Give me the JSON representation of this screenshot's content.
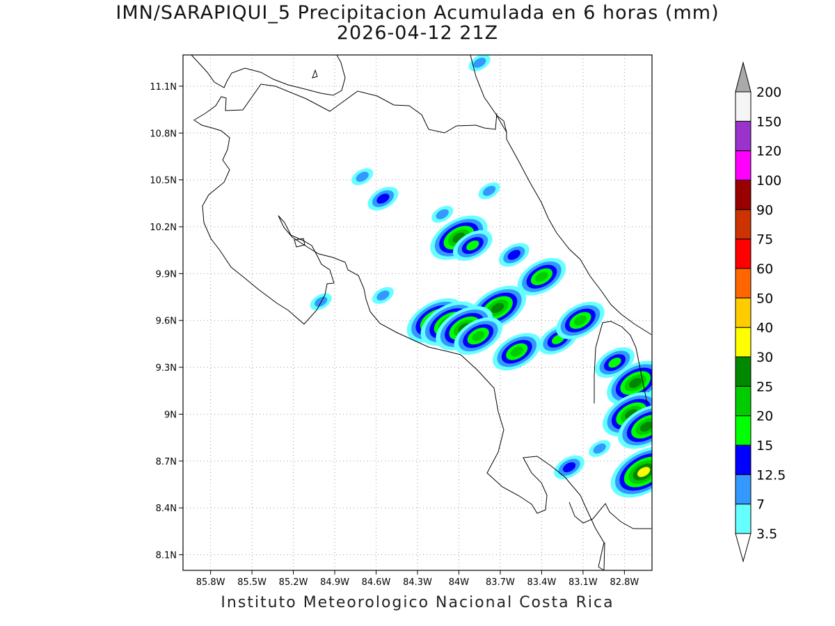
{
  "title": {
    "line1": "IMN/SARAPIQUI_5 Precipitacion Acumulada en 6 horas (mm)",
    "line2": "2026-04-12 21Z"
  },
  "credit": "Instituto Meteorologico Nacional Costa Rica",
  "map": {
    "lon_range": [
      -86.0,
      -82.6
    ],
    "lat_range": [
      8.0,
      11.3
    ],
    "lat_ticks": [
      {
        "value": 11.1,
        "label": "11.1N"
      },
      {
        "value": 10.8,
        "label": "10.8N"
      },
      {
        "value": 10.5,
        "label": "10.5N"
      },
      {
        "value": 10.2,
        "label": "10.2N"
      },
      {
        "value": 9.9,
        "label": "9.9N"
      },
      {
        "value": 9.6,
        "label": "9.6N"
      },
      {
        "value": 9.3,
        "label": "9.3N"
      },
      {
        "value": 9.0,
        "label": "9N"
      },
      {
        "value": 8.7,
        "label": "8.7N"
      },
      {
        "value": 8.4,
        "label": "8.4N"
      },
      {
        "value": 8.1,
        "label": "8.1N"
      }
    ],
    "lon_ticks": [
      {
        "value": -85.8,
        "label": "85.8W"
      },
      {
        "value": -85.5,
        "label": "85.5W"
      },
      {
        "value": -85.2,
        "label": "85.2W"
      },
      {
        "value": -84.9,
        "label": "84.9W"
      },
      {
        "value": -84.6,
        "label": "84.6W"
      },
      {
        "value": -84.3,
        "label": "84.3W"
      },
      {
        "value": -84.0,
        "label": "84W"
      },
      {
        "value": -83.7,
        "label": "83.7W"
      },
      {
        "value": -83.4,
        "label": "83.4W"
      },
      {
        "value": -83.1,
        "label": "83.1W"
      },
      {
        "value": -82.8,
        "label": "82.8W"
      }
    ]
  },
  "colorbar": {
    "levels": [
      {
        "label": "3.5",
        "color": "#66ffff"
      },
      {
        "label": "7",
        "color": "#3399ff"
      },
      {
        "label": "12.5",
        "color": "#0000ff"
      },
      {
        "label": "15",
        "color": "#00ff00"
      },
      {
        "label": "20",
        "color": "#00cc00"
      },
      {
        "label": "25",
        "color": "#008800"
      },
      {
        "label": "30",
        "color": "#ffff00"
      },
      {
        "label": "40",
        "color": "#ffcc00"
      },
      {
        "label": "50",
        "color": "#ff6600"
      },
      {
        "label": "60",
        "color": "#ff0000"
      },
      {
        "label": "75",
        "color": "#cc3300"
      },
      {
        "label": "90",
        "color": "#990000"
      },
      {
        "label": "100",
        "color": "#ff00ff"
      },
      {
        "label": "120",
        "color": "#9933cc"
      },
      {
        "label": "150",
        "color": "#f5f5f5"
      },
      {
        "label": "200",
        "color": "#aaaaaa"
      }
    ]
  },
  "precip_cells": [
    {
      "lon": -83.78,
      "lat": 10.43,
      "level": 1
    },
    {
      "lon": -84.55,
      "lat": 10.38,
      "level": 2
    },
    {
      "lon": -84.12,
      "lat": 10.28,
      "level": 1
    },
    {
      "lon": -84.0,
      "lat": 10.13,
      "level": 5
    },
    {
      "lon": -83.9,
      "lat": 10.08,
      "level": 3
    },
    {
      "lon": -83.6,
      "lat": 10.02,
      "level": 2
    },
    {
      "lon": -83.4,
      "lat": 9.88,
      "level": 4
    },
    {
      "lon": -83.72,
      "lat": 9.68,
      "level": 5
    },
    {
      "lon": -84.17,
      "lat": 9.6,
      "level": 5
    },
    {
      "lon": -84.07,
      "lat": 9.58,
      "level": 5
    },
    {
      "lon": -83.96,
      "lat": 9.55,
      "level": 5
    },
    {
      "lon": -83.86,
      "lat": 9.5,
      "level": 4
    },
    {
      "lon": -83.58,
      "lat": 9.4,
      "level": 4
    },
    {
      "lon": -83.28,
      "lat": 9.48,
      "level": 3
    },
    {
      "lon": -83.12,
      "lat": 9.6,
      "level": 4
    },
    {
      "lon": -82.87,
      "lat": 9.33,
      "level": 3
    },
    {
      "lon": -82.72,
      "lat": 9.2,
      "level": 5
    },
    {
      "lon": -82.75,
      "lat": 9.0,
      "level": 5
    },
    {
      "lon": -82.64,
      "lat": 8.92,
      "level": 5
    },
    {
      "lon": -82.66,
      "lat": 8.63,
      "level": 6
    },
    {
      "lon": -83.2,
      "lat": 8.66,
      "level": 2
    },
    {
      "lon": -82.98,
      "lat": 8.78,
      "level": 1
    },
    {
      "lon": -84.55,
      "lat": 9.76,
      "level": 1
    },
    {
      "lon": -85.0,
      "lat": 9.72,
      "level": 1
    },
    {
      "lon": -83.85,
      "lat": 11.25,
      "level": 1
    },
    {
      "lon": -84.7,
      "lat": 10.52,
      "level": 1
    }
  ]
}
